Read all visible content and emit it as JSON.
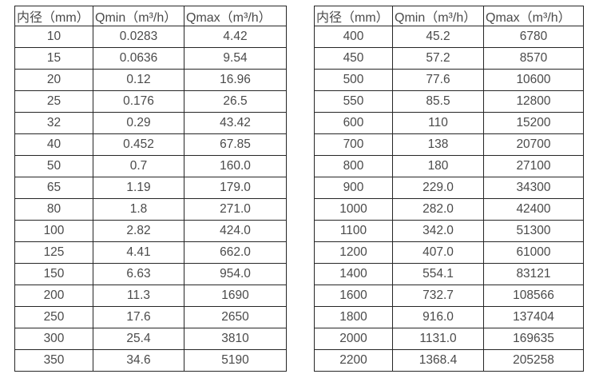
{
  "page": {
    "background": "#ffffff",
    "text_color": "#4a4a4a",
    "border_color": "#262626"
  },
  "tables": [
    {
      "id": "flow-table-small-diameters",
      "headers": [
        "内径（mm）",
        "Qmin（m³/h）",
        "Qmax（m³/h）"
      ],
      "rows": [
        [
          "10",
          "0.0283",
          "4.42"
        ],
        [
          "15",
          "0.0636",
          "9.54"
        ],
        [
          "20",
          "0.12",
          "16.96"
        ],
        [
          "25",
          "0.176",
          "26.5"
        ],
        [
          "32",
          "0.29",
          "43.42"
        ],
        [
          "40",
          "0.452",
          "67.85"
        ],
        [
          "50",
          "0.7",
          "160.0"
        ],
        [
          "65",
          "1.19",
          "179.0"
        ],
        [
          "80",
          "1.8",
          "271.0"
        ],
        [
          "100",
          "2.82",
          "424.0"
        ],
        [
          "125",
          "4.41",
          "662.0"
        ],
        [
          "150",
          "6.63",
          "954.0"
        ],
        [
          "200",
          "11.3",
          "1690"
        ],
        [
          "250",
          "17.6",
          "2650"
        ],
        [
          "300",
          "25.4",
          "3810"
        ],
        [
          "350",
          "34.6",
          "5190"
        ]
      ]
    },
    {
      "id": "flow-table-large-diameters",
      "headers": [
        "内径（mm）",
        "Qmin（m³/h）",
        "Qmax（m³/h）"
      ],
      "rows": [
        [
          "400",
          "45.2",
          "6780"
        ],
        [
          "450",
          "57.2",
          "8570"
        ],
        [
          "500",
          "77.6",
          "10600"
        ],
        [
          "550",
          "85.5",
          "12800"
        ],
        [
          "600",
          "110",
          "15200"
        ],
        [
          "700",
          "138",
          "20700"
        ],
        [
          "800",
          "180",
          "27100"
        ],
        [
          "900",
          "229.0",
          "34300"
        ],
        [
          "1000",
          "282.0",
          "42400"
        ],
        [
          "1100",
          "342.0",
          "51300"
        ],
        [
          "1200",
          "407.0",
          "61000"
        ],
        [
          "1400",
          "554.1",
          "83121"
        ],
        [
          "1600",
          "732.7",
          "108566"
        ],
        [
          "1800",
          "916.0",
          "137404"
        ],
        [
          "2000",
          "1131.0",
          "169635"
        ],
        [
          "2200",
          "1368.4",
          "205258"
        ]
      ]
    }
  ]
}
